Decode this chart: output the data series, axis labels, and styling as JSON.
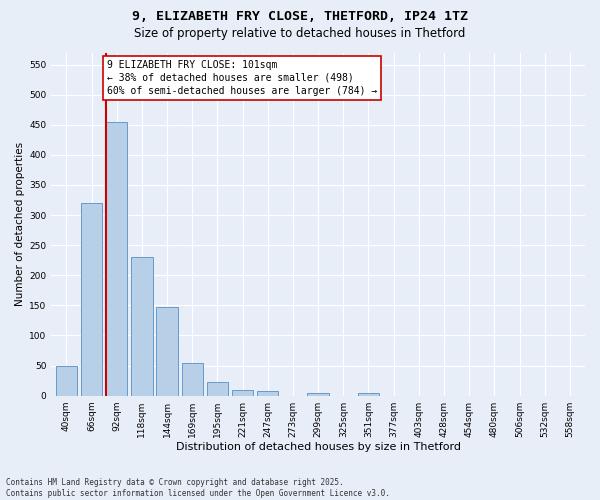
{
  "title": "9, ELIZABETH FRY CLOSE, THETFORD, IP24 1TZ",
  "subtitle": "Size of property relative to detached houses in Thetford",
  "xlabel": "Distribution of detached houses by size in Thetford",
  "ylabel": "Number of detached properties",
  "categories": [
    "40sqm",
    "66sqm",
    "92sqm",
    "118sqm",
    "144sqm",
    "169sqm",
    "195sqm",
    "221sqm",
    "247sqm",
    "273sqm",
    "299sqm",
    "325sqm",
    "351sqm",
    "377sqm",
    "403sqm",
    "428sqm",
    "454sqm",
    "480sqm",
    "506sqm",
    "532sqm",
    "558sqm"
  ],
  "values": [
    50,
    320,
    455,
    230,
    148,
    55,
    23,
    10,
    8,
    0,
    4,
    0,
    5,
    0,
    0,
    0,
    0,
    0,
    0,
    0,
    0
  ],
  "bar_color": "#b8cfe8",
  "bar_edge_color": "#6699cc",
  "background_color": "#e8eef8",
  "grid_color": "#ffffff",
  "property_line_color": "#cc0000",
  "annotation_line1": "9 ELIZABETH FRY CLOSE: 101sqm",
  "annotation_line2": "← 38% of detached houses are smaller (498)",
  "annotation_line3": "60% of semi-detached houses are larger (784) →",
  "annotation_box_edge_color": "#cc0000",
  "footer_line1": "Contains HM Land Registry data © Crown copyright and database right 2025.",
  "footer_line2": "Contains public sector information licensed under the Open Government Licence v3.0.",
  "ylim": [
    0,
    570
  ],
  "yticks": [
    0,
    50,
    100,
    150,
    200,
    250,
    300,
    350,
    400,
    450,
    500,
    550
  ],
  "title_fontsize": 9.5,
  "subtitle_fontsize": 8.5,
  "ylabel_fontsize": 7.5,
  "xlabel_fontsize": 8,
  "tick_fontsize": 6.5,
  "annotation_fontsize": 7,
  "footer_fontsize": 5.5
}
